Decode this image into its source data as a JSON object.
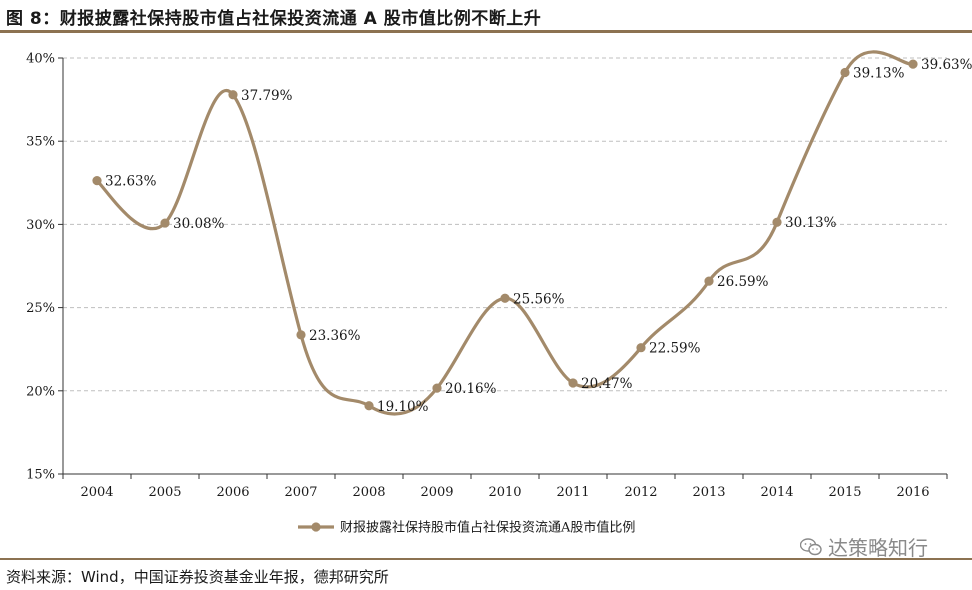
{
  "figure": {
    "title": "图 8：财报披露社保持股市值占社保投资流通 A 股市值比例不断上升",
    "source": "资料来源：Wind，中国证券投资基金业年报，德邦研究所",
    "watermark": "达策略知行"
  },
  "colors": {
    "series": "#a38a6a",
    "rule": "#8c7251",
    "grid": "#bfbfbf"
  },
  "chart_data": {
    "type": "line",
    "title": "",
    "xlabel": "",
    "ylabel": "",
    "categories": [
      "2004",
      "2005",
      "2006",
      "2007",
      "2008",
      "2009",
      "2010",
      "2011",
      "2012",
      "2013",
      "2014",
      "2015",
      "2016"
    ],
    "series": [
      {
        "name": "财报披露社保持股市值占社保投资流通A股市值比例",
        "values": [
          32.63,
          30.08,
          37.79,
          23.36,
          19.1,
          20.16,
          25.56,
          20.47,
          22.59,
          26.59,
          30.13,
          39.13,
          39.63
        ],
        "labels": [
          "32.63%",
          "30.08%",
          "37.79%",
          "23.36%",
          "19.10%",
          "20.16%",
          "25.56%",
          "20.47%",
          "22.59%",
          "26.59%",
          "30.13%",
          "39.13%",
          "39.63%"
        ]
      }
    ],
    "ylim": [
      15,
      40
    ],
    "yticks": [
      "15%",
      "20%",
      "25%",
      "30%",
      "35%",
      "40%"
    ],
    "grid": "horizontal dashed",
    "legend": "bottom-center"
  }
}
